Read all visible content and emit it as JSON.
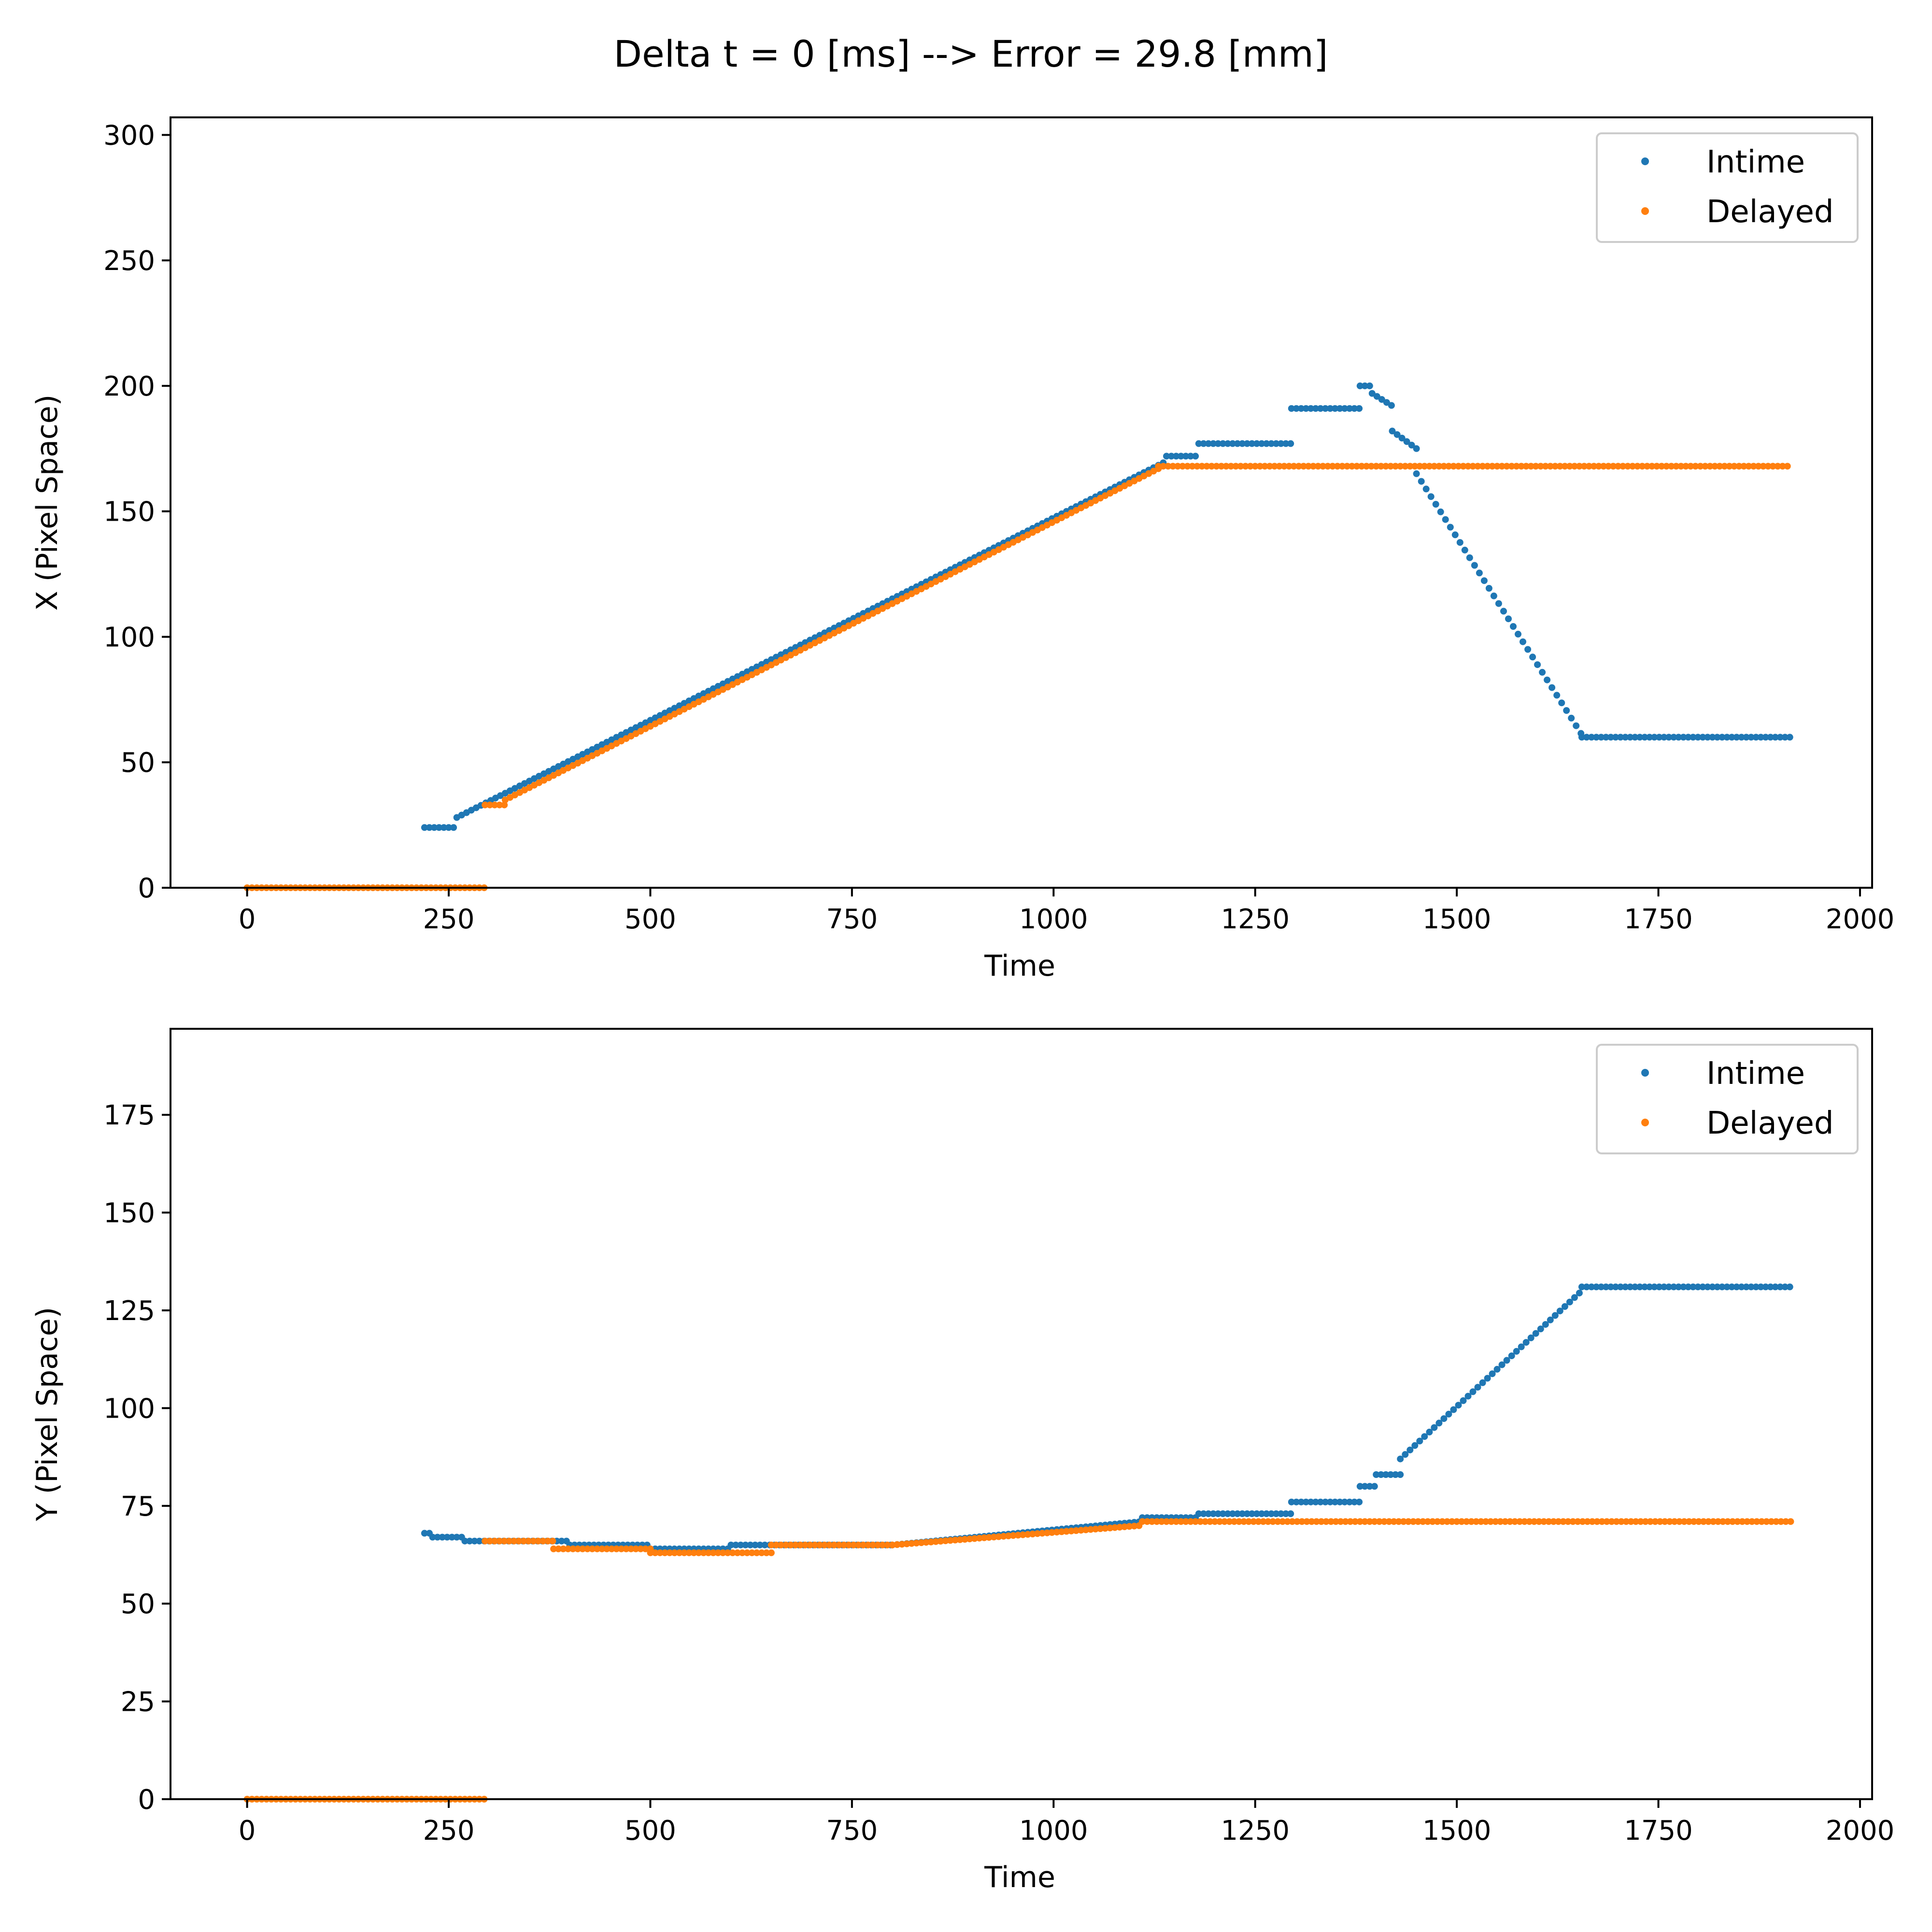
{
  "figure": {
    "suptitle": "Delta t = 0 [ms] --> Error = 29.8 [mm]"
  },
  "colors": {
    "intime": "#1f77b4",
    "delayed": "#ff7f0e"
  },
  "chart_data": [
    {
      "type": "scatter",
      "xlabel": "Time",
      "ylabel": "X (Pixel Space)",
      "xlim": [
        -95,
        2015
      ],
      "ylim": [
        0,
        307
      ],
      "xticks": [
        0,
        250,
        500,
        750,
        1000,
        1250,
        1500,
        1750,
        2000
      ],
      "yticks": [
        0,
        50,
        100,
        150,
        200,
        250,
        300
      ],
      "grid": false,
      "legend": "top-right",
      "series": [
        {
          "name": "Intime",
          "color": "#1f77b4",
          "segments": [
            {
              "x0": 220,
              "x1": 260,
              "y": 24
            },
            {
              "x0": 260,
              "x1": 1140,
              "y0": 28,
              "y1": 170
            },
            {
              "x0": 1140,
              "x1": 1180,
              "y": 172
            },
            {
              "x0": 1180,
              "x1": 1295,
              "y": 177
            },
            {
              "x0": 1295,
              "x1": 1380,
              "y": 191
            },
            {
              "x0": 1380,
              "x1": 1395,
              "y": 200
            },
            {
              "x0": 1395,
              "x1": 1420,
              "y0": 197,
              "y1": 192
            },
            {
              "x0": 1420,
              "x1": 1450,
              "y0": 182,
              "y1": 175
            },
            {
              "x0": 1450,
              "x1": 1655,
              "y0": 165,
              "y1": 61
            },
            {
              "x0": 1655,
              "x1": 1915,
              "y": 60
            }
          ]
        },
        {
          "name": "Delayed",
          "color": "#ff7f0e",
          "segments": [
            {
              "x0": 0,
              "x1": 295,
              "y": 0
            },
            {
              "x0": 295,
              "x1": 320,
              "y": 33
            },
            {
              "x0": 320,
              "x1": 1130,
              "y0": 35,
              "y1": 167
            },
            {
              "x0": 1130,
              "x1": 1915,
              "y": 168
            }
          ]
        }
      ]
    },
    {
      "type": "scatter",
      "xlabel": "Time",
      "ylabel": "Y (Pixel Space)",
      "xlim": [
        -95,
        2015
      ],
      "ylim": [
        0,
        197
      ],
      "xticks": [
        0,
        250,
        500,
        750,
        1000,
        1250,
        1500,
        1750,
        2000
      ],
      "yticks": [
        0,
        25,
        50,
        75,
        100,
        125,
        150,
        175
      ],
      "grid": false,
      "legend": "top-right",
      "series": [
        {
          "name": "Intime",
          "color": "#1f77b4",
          "segments": [
            {
              "x0": 220,
              "x1": 230,
              "y": 68
            },
            {
              "x0": 230,
              "x1": 270,
              "y": 67
            },
            {
              "x0": 270,
              "x1": 400,
              "y": 66
            },
            {
              "x0": 400,
              "x1": 500,
              "y": 65
            },
            {
              "x0": 500,
              "x1": 600,
              "y": 64
            },
            {
              "x0": 600,
              "x1": 800,
              "y": 65
            },
            {
              "x0": 800,
              "x1": 1110,
              "y0": 65,
              "y1": 71
            },
            {
              "x0": 1110,
              "x1": 1180,
              "y": 72
            },
            {
              "x0": 1180,
              "x1": 1295,
              "y": 73
            },
            {
              "x0": 1295,
              "x1": 1380,
              "y": 76
            },
            {
              "x0": 1380,
              "x1": 1400,
              "y": 80
            },
            {
              "x0": 1400,
              "x1": 1430,
              "y": 83
            },
            {
              "x0": 1430,
              "x1": 1655,
              "y0": 87,
              "y1": 130
            },
            {
              "x0": 1655,
              "x1": 1915,
              "y": 131
            }
          ]
        },
        {
          "name": "Delayed",
          "color": "#ff7f0e",
          "segments": [
            {
              "x0": 0,
              "x1": 295,
              "y": 0
            },
            {
              "x0": 295,
              "x1": 380,
              "y": 66
            },
            {
              "x0": 380,
              "x1": 500,
              "y": 64
            },
            {
              "x0": 500,
              "x1": 650,
              "y": 63
            },
            {
              "x0": 650,
              "x1": 800,
              "y": 65
            },
            {
              "x0": 800,
              "x1": 1110,
              "y0": 65,
              "y1": 70
            },
            {
              "x0": 1110,
              "x1": 1915,
              "y": 71
            }
          ]
        }
      ]
    }
  ]
}
